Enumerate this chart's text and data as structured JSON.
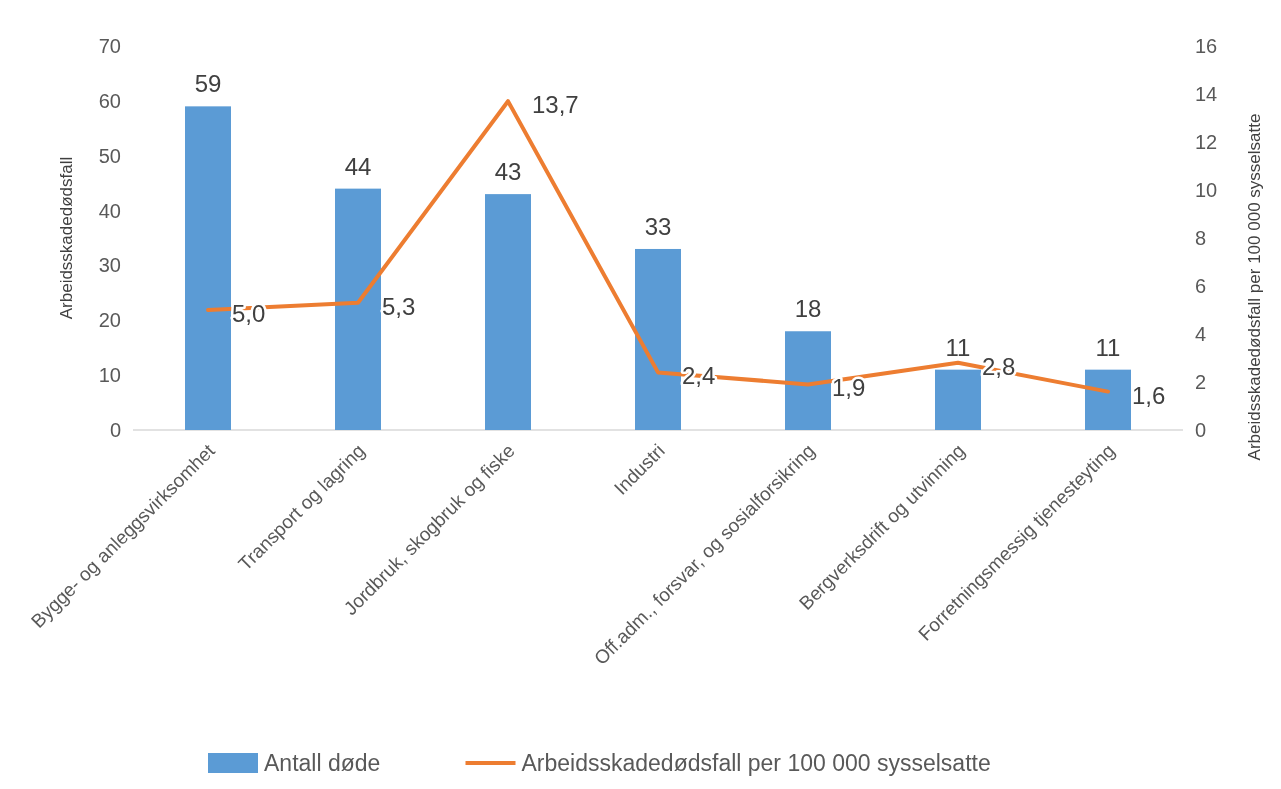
{
  "chart_data": {
    "type": "bar",
    "categories": [
      "Bygge- og anleggsvirksomhet",
      "Transport og lagring",
      "Jordbruk, skogbruk og fiske",
      "Industri",
      "Off.adm., forsvar, og sosialforsikring",
      "Bergverksdrift og utvinning",
      "Forretningsmessig tjenesteyting"
    ],
    "series": [
      {
        "name": "Antall døde",
        "color": "#5b9bd5",
        "values": [
          59,
          44,
          43,
          33,
          18,
          11,
          11
        ]
      },
      {
        "name": "Arbeidsskadedødsfall per 100 000 sysselsatte",
        "type": "line",
        "axis": "y2",
        "color": "#ed7d31",
        "values": [
          5.0,
          5.3,
          13.7,
          2.4,
          1.9,
          2.8,
          1.6
        ],
        "value_labels": [
          "5,0",
          "5,3",
          "13,7",
          "2,4",
          "1,9",
          "2,8",
          "1,6"
        ]
      }
    ],
    "data_labels": true,
    "ylabel": "Arbeidsskadedødsfall",
    "y2label": "Arbeidsskadedødsfall per 100 000 sysselsatte",
    "ylim": [
      0,
      70
    ],
    "yticks": [
      0,
      10,
      20,
      30,
      40,
      50,
      60,
      70
    ],
    "y2lim": [
      0,
      16
    ],
    "y2ticks": [
      0,
      2,
      4,
      6,
      8,
      10,
      12,
      14,
      16
    ],
    "grid": false,
    "legend": "bottom",
    "marker": "none",
    "line_style": "solid"
  }
}
